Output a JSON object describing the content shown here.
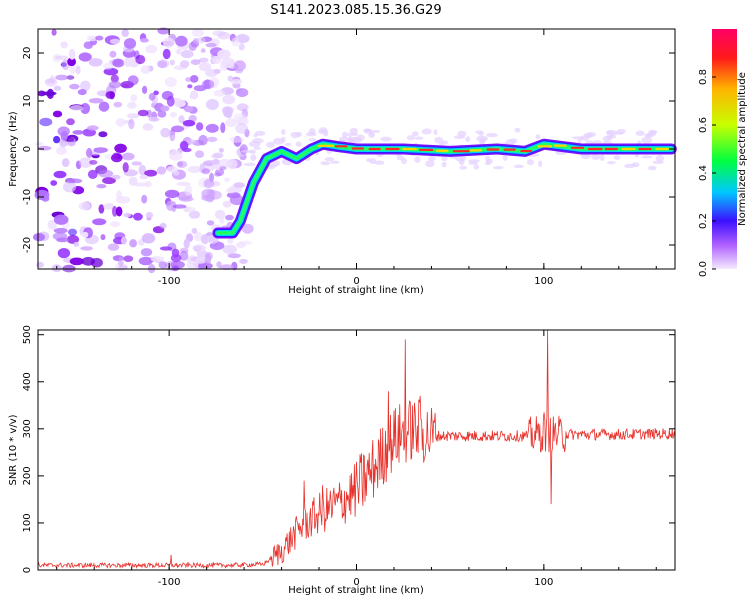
{
  "title": "S141.2023.085.15.36.G29",
  "chart_data": [
    {
      "type": "heatmap",
      "xlabel": "Height of straight line (km)",
      "ylabel": "Frequency (Hz)",
      "xlim": [
        -170,
        170
      ],
      "ylim": [
        -25,
        25
      ],
      "xticks": [
        -100,
        0,
        100
      ],
      "yticks": [
        -20,
        -10,
        0,
        10,
        20
      ],
      "colorbar": {
        "label": "Normalized spectral amplitude",
        "range": [
          0,
          1
        ],
        "ticks": [
          0.0,
          0.2,
          0.4,
          0.6,
          0.8
        ]
      },
      "ridge": {
        "x": [
          -74,
          -66,
          -62,
          -55,
          -48,
          -40,
          -32,
          -24,
          -18,
          -10,
          0,
          25,
          50,
          75,
          90,
          100,
          120,
          150,
          168
        ],
        "y": [
          -17.5,
          -17.5,
          -15,
          -7,
          -2,
          -0.5,
          -2,
          0,
          1,
          0.5,
          0,
          0,
          -0.5,
          0,
          -0.5,
          1,
          0,
          0,
          0
        ]
      },
      "noise_region_x": [
        -170,
        -58
      ],
      "colors": [
        "#f4eaff",
        "#8a00e6",
        "#3c10ff",
        "#00c8ff",
        "#00ff00",
        "#ffd400",
        "#ff1a1a",
        "#ff0066"
      ]
    },
    {
      "type": "line",
      "xlabel": "Height of straight line (km)",
      "ylabel": "SNR (10 * v/v)",
      "xlim": [
        -170,
        170
      ],
      "ylim": [
        0,
        510
      ],
      "xticks": [
        -100,
        0,
        100
      ],
      "yticks": [
        0,
        100,
        200,
        300,
        400,
        500
      ],
      "line_color": "#e8312b",
      "envelope": {
        "x": [
          -170,
          -100,
          -70,
          -50,
          -40,
          -30,
          -20,
          -10,
          0,
          10,
          20,
          30,
          40,
          60,
          90,
          100,
          110,
          140,
          170
        ],
        "y": [
          10,
          10,
          10,
          12,
          40,
          90,
          120,
          140,
          170,
          220,
          280,
          300,
          285,
          285,
          285,
          290,
          288,
          288,
          290
        ]
      },
      "spikes": [
        {
          "x": -28,
          "y": 190
        },
        {
          "x": -18,
          "y": 180
        },
        {
          "x": 17,
          "y": 380
        },
        {
          "x": 26,
          "y": 490
        },
        {
          "x": 34,
          "y": 370
        },
        {
          "x": 100,
          "y": 335
        },
        {
          "x": 102,
          "y": 510
        },
        {
          "x": 104,
          "y": 140
        },
        {
          "x": -99,
          "y": 32
        }
      ]
    }
  ]
}
